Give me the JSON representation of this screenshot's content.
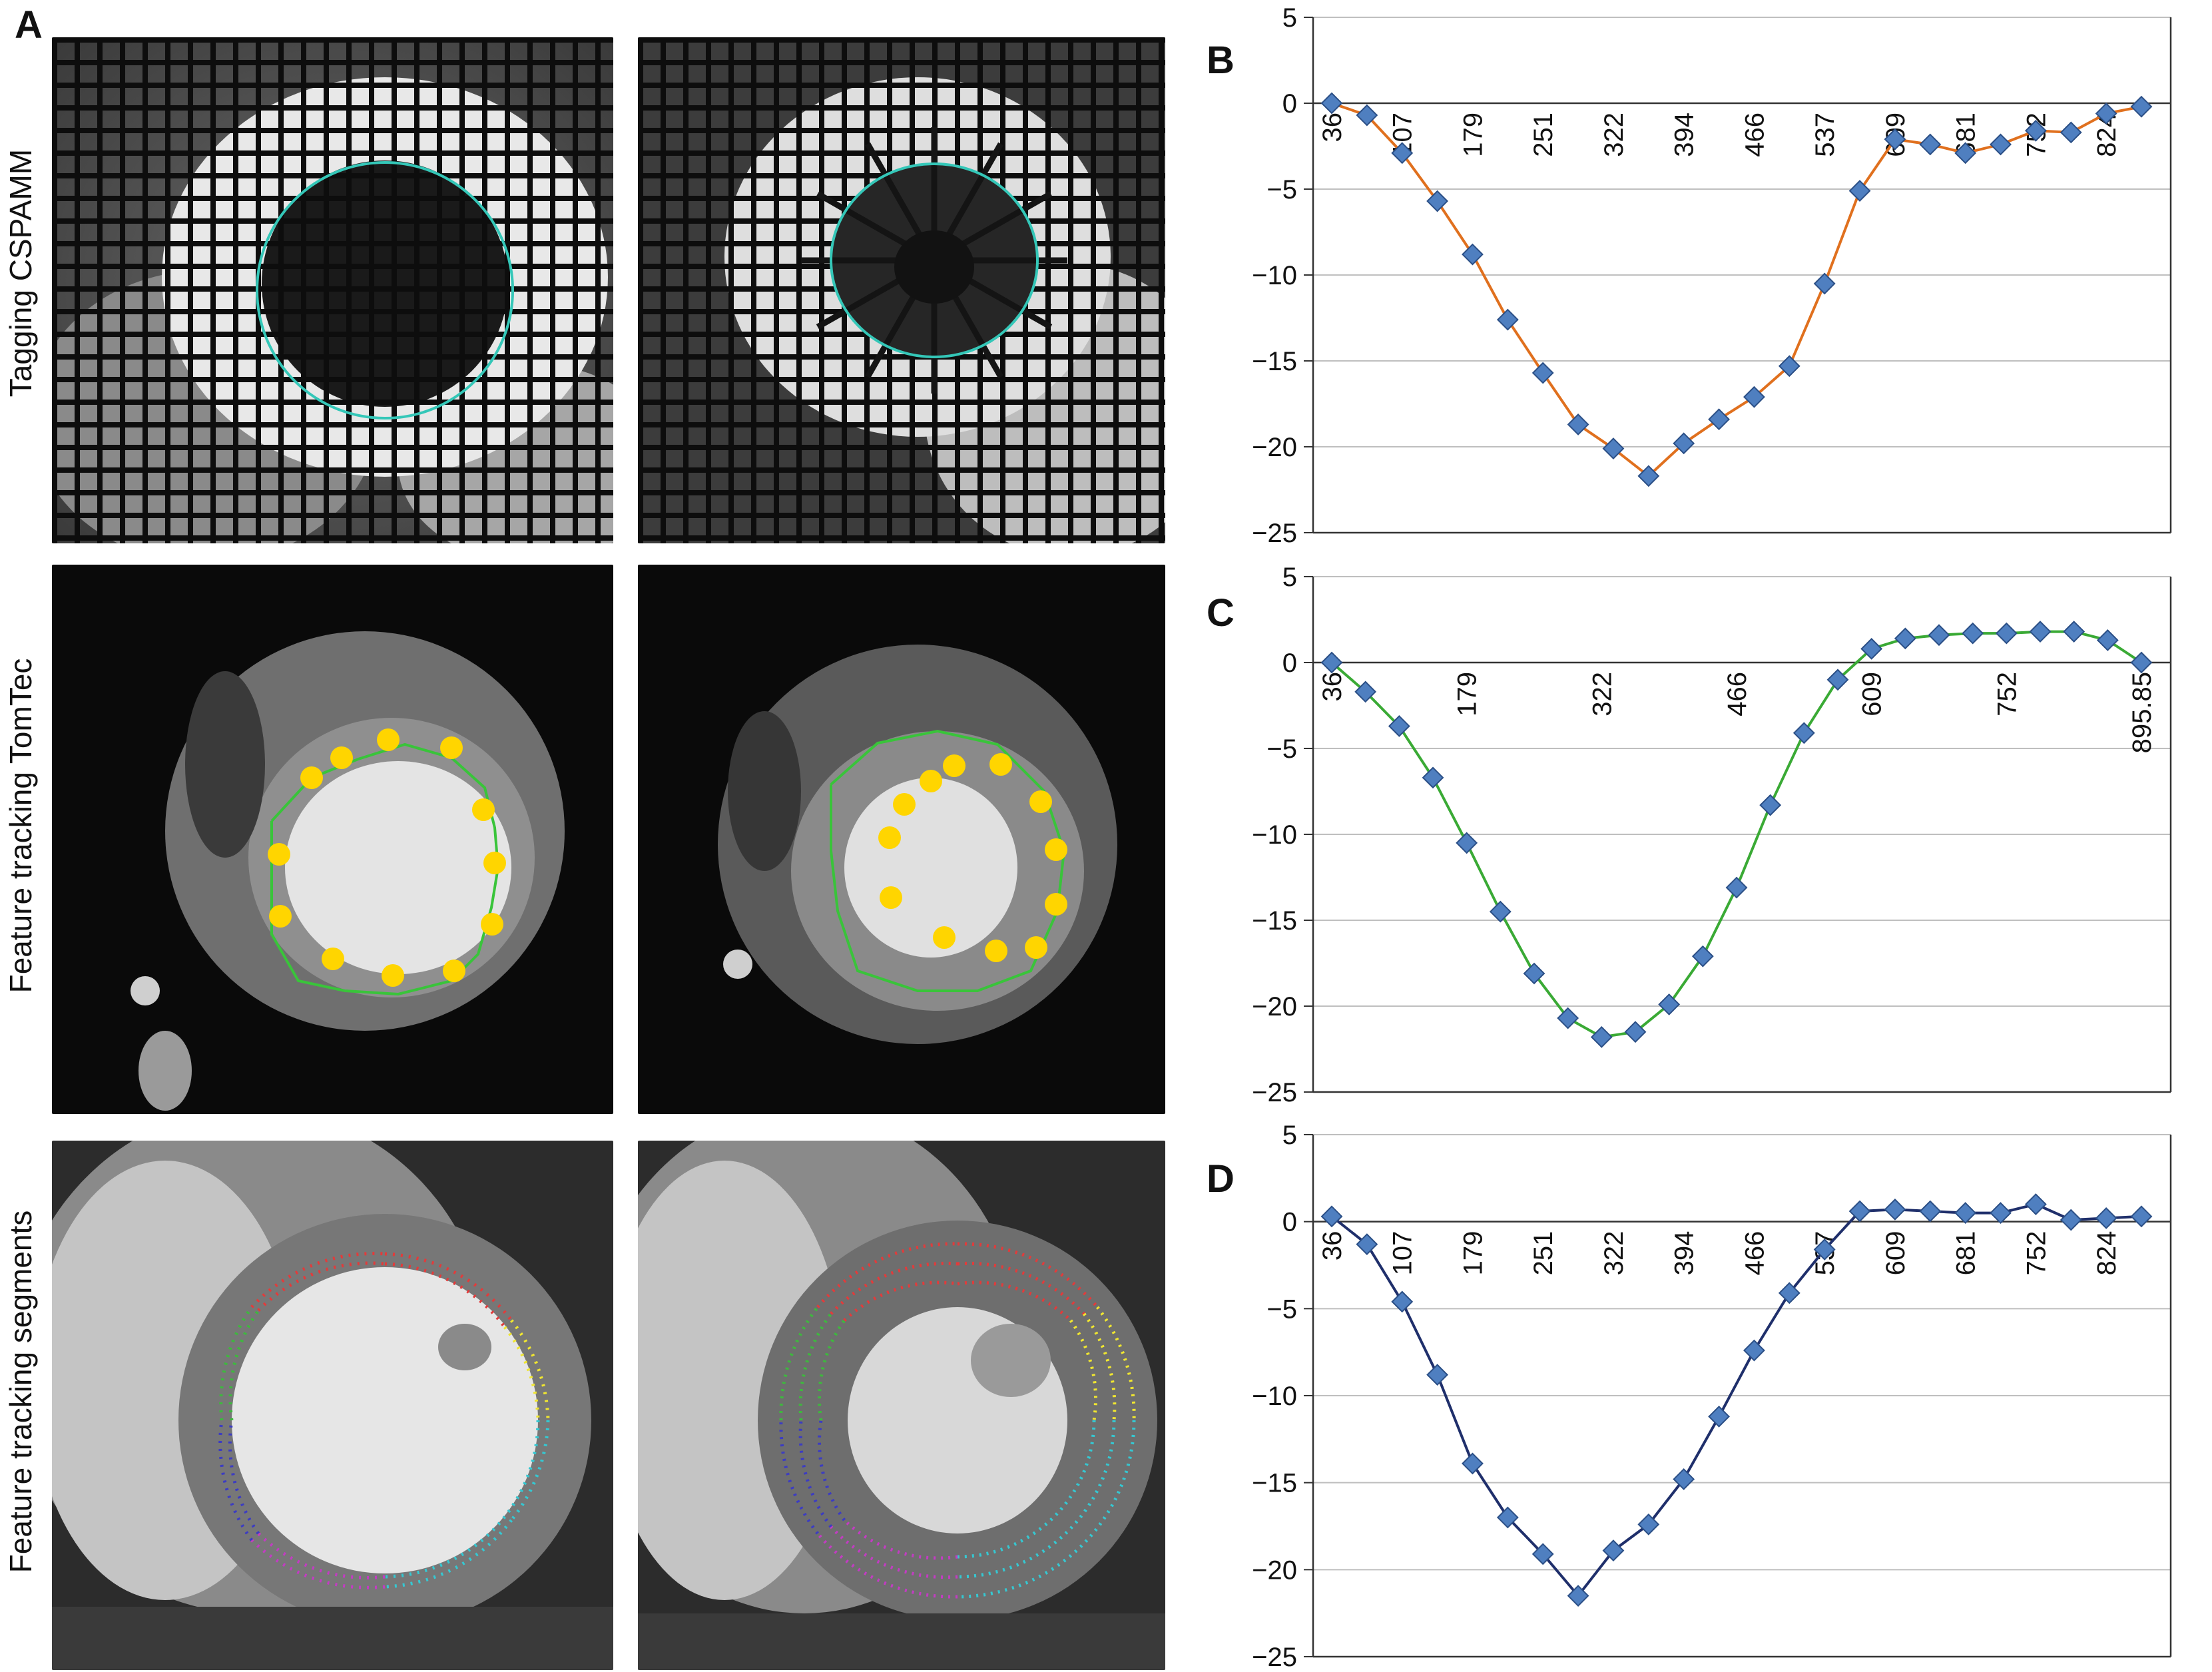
{
  "figure": {
    "panel_a_letter": "A",
    "row_labels": [
      "Tagging CSPAMM",
      "Feature tracking TomTec",
      "Feature tracking segments"
    ]
  },
  "colors": {
    "series_b": "#E0701E",
    "series_c": "#3AAA35",
    "series_d": "#1F2F6B",
    "marker_fill": "#4F7FC0",
    "marker_edge": "#2B4F86",
    "grid": "#BFBFBF"
  },
  "chart_data": [
    {
      "panel": "B",
      "type": "line",
      "title": "",
      "xlabel": "",
      "ylabel": "",
      "ylim": [
        -25,
        5
      ],
      "y_ticks": [
        5,
        0,
        -5,
        -10,
        -15,
        -20,
        -25
      ],
      "x_tick_labels": [
        "36",
        "107",
        "179",
        "251",
        "322",
        "394",
        "466",
        "537",
        "609",
        "681",
        "752",
        "824"
      ],
      "grid": "horizontal",
      "series": [
        {
          "color_key": "series_b",
          "values": [
            0,
            -0.7,
            -2.9,
            -5.7,
            -8.8,
            -12.6,
            -15.7,
            -18.7,
            -20.1,
            -21.7,
            -19.8,
            -18.4,
            -17.1,
            -15.3,
            -10.5,
            -5.1,
            -2.1,
            -2.4,
            -2.9,
            -2.4,
            -1.6,
            -1.7,
            -0.6,
            -0.2
          ]
        }
      ]
    },
    {
      "panel": "C",
      "type": "line",
      "title": "",
      "xlabel": "",
      "ylabel": "",
      "ylim": [
        -25,
        5
      ],
      "y_ticks": [
        5,
        0,
        -5,
        -10,
        -15,
        -20,
        -25
      ],
      "x_tick_labels": [
        "36",
        "179",
        "322",
        "466",
        "609",
        "752",
        "895.85"
      ],
      "grid": "horizontal",
      "series": [
        {
          "color_key": "series_c",
          "values": [
            0,
            -1.7,
            -3.7,
            -6.7,
            -10.5,
            -14.5,
            -18.1,
            -20.7,
            -21.8,
            -21.5,
            -19.9,
            -17.1,
            -13.1,
            -8.3,
            -4.1,
            -1.0,
            0.8,
            1.4,
            1.6,
            1.7,
            1.7,
            1.8,
            1.8,
            1.3,
            0
          ]
        }
      ]
    },
    {
      "panel": "D",
      "type": "line",
      "title": "",
      "xlabel": "",
      "ylabel": "",
      "ylim": [
        -25,
        5
      ],
      "y_ticks": [
        5,
        0,
        -5,
        -10,
        -15,
        -20,
        -25
      ],
      "x_tick_labels": [
        "36",
        "107",
        "179",
        "251",
        "322",
        "394",
        "466",
        "537",
        "609",
        "681",
        "752",
        "824"
      ],
      "grid": "horizontal",
      "series": [
        {
          "color_key": "series_d",
          "values": [
            0.3,
            -1.3,
            -4.6,
            -8.8,
            -13.9,
            -17.0,
            -19.1,
            -21.5,
            -18.9,
            -17.4,
            -14.8,
            -11.2,
            -7.4,
            -4.1,
            -1.6,
            0.6,
            0.7,
            0.6,
            0.5,
            0.5,
            1.0,
            0.1,
            0.2,
            0.3
          ]
        }
      ]
    }
  ]
}
